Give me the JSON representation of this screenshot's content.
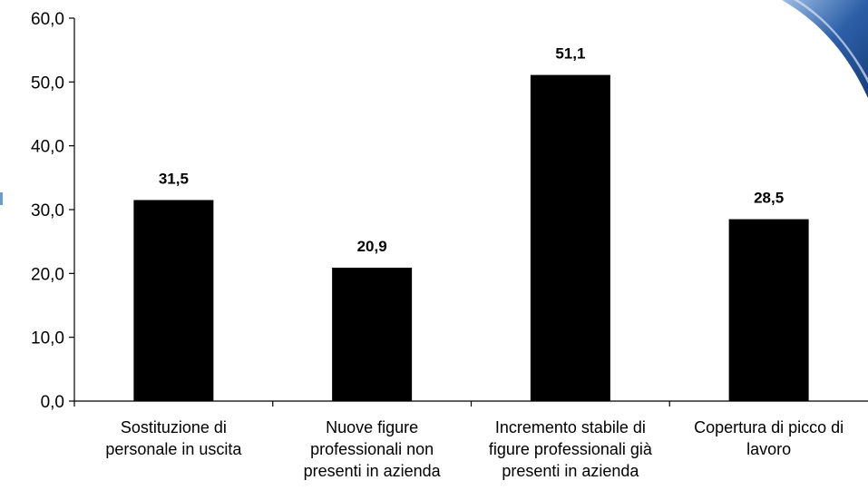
{
  "colors": {
    "bar": "#000000",
    "axis": "#000000",
    "swoosh_dark": "#1c4a8c",
    "swoosh_light": "#6c9bd0"
  },
  "chart_data": {
    "type": "bar",
    "categories": [
      [
        "Sostituzione di",
        "personale in uscita"
      ],
      [
        "Nuove figure",
        "professionali non",
        "presenti in azienda"
      ],
      [
        "Incremento stabile di",
        "figure professionali già",
        "presenti in azienda"
      ],
      [
        "Copertura di picco di",
        "lavoro"
      ]
    ],
    "values": [
      31.5,
      20.9,
      51.1,
      28.5
    ],
    "data_labels": [
      "31,5",
      "20,9",
      "51,1",
      "28,5"
    ],
    "yticks": [
      0,
      10,
      20,
      30,
      40,
      50,
      60
    ],
    "ytick_labels": [
      "0,0",
      "10,0",
      "20,0",
      "30,0",
      "40,0",
      "50,0",
      "60,0"
    ],
    "ylim": [
      0,
      60
    ],
    "grid": false,
    "legend": "none",
    "title": "",
    "xlabel": "",
    "ylabel": ""
  }
}
